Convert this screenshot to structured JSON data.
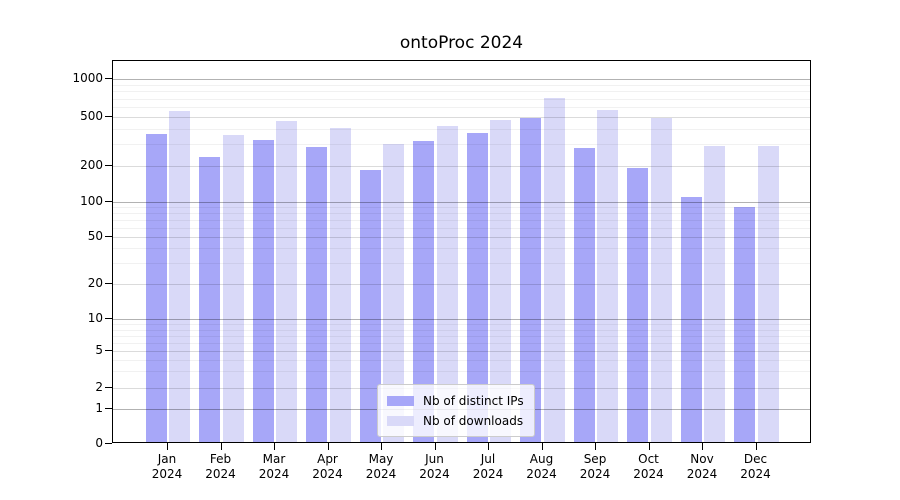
{
  "title": "ontoProc 2024",
  "colors": {
    "distinct_ips_bar": "#a7a7f8",
    "downloads_bar": "#d9d9f8",
    "grid_decade": "#b2b2b2",
    "grid_major": "#dcdcdc",
    "grid_minor": "#f0f0f0",
    "axis": "#000000",
    "legend_border": "#cccccc"
  },
  "chart_data": {
    "type": "bar",
    "title": "ontoProc 2024",
    "categories": [
      "Jan",
      "Feb",
      "Mar",
      "Apr",
      "May",
      "Jun",
      "Jul",
      "Aug",
      "Sep",
      "Oct",
      "Nov",
      "Dec"
    ],
    "year": "2024",
    "series": [
      {
        "name": "Nb of distinct IPs",
        "color": "#a7a7f8",
        "values": [
          350,
          230,
          315,
          275,
          178,
          305,
          355,
          470,
          270,
          185,
          105,
          86
        ]
      },
      {
        "name": "Nb of downloads",
        "color": "#d9d9f8",
        "values": [
          535,
          345,
          450,
          390,
          290,
          410,
          455,
          680,
          545,
          470,
          280,
          280
        ]
      }
    ],
    "yscale": "symlog",
    "y_ticks": [
      0,
      1,
      2,
      5,
      10,
      20,
      50,
      100,
      200,
      500,
      1000
    ],
    "y_minor_gridlines": [
      3,
      4,
      6,
      7,
      8,
      9,
      30,
      40,
      60,
      70,
      80,
      90,
      300,
      400,
      600,
      700,
      800,
      900
    ],
    "ylim": [
      0,
      1400
    ],
    "xlabel": "",
    "ylabel": "",
    "grid": true,
    "legend_position": "lower center inside plot"
  },
  "legend": {
    "items": [
      {
        "label": "Nb of distinct IPs"
      },
      {
        "label": "Nb of downloads"
      }
    ]
  }
}
